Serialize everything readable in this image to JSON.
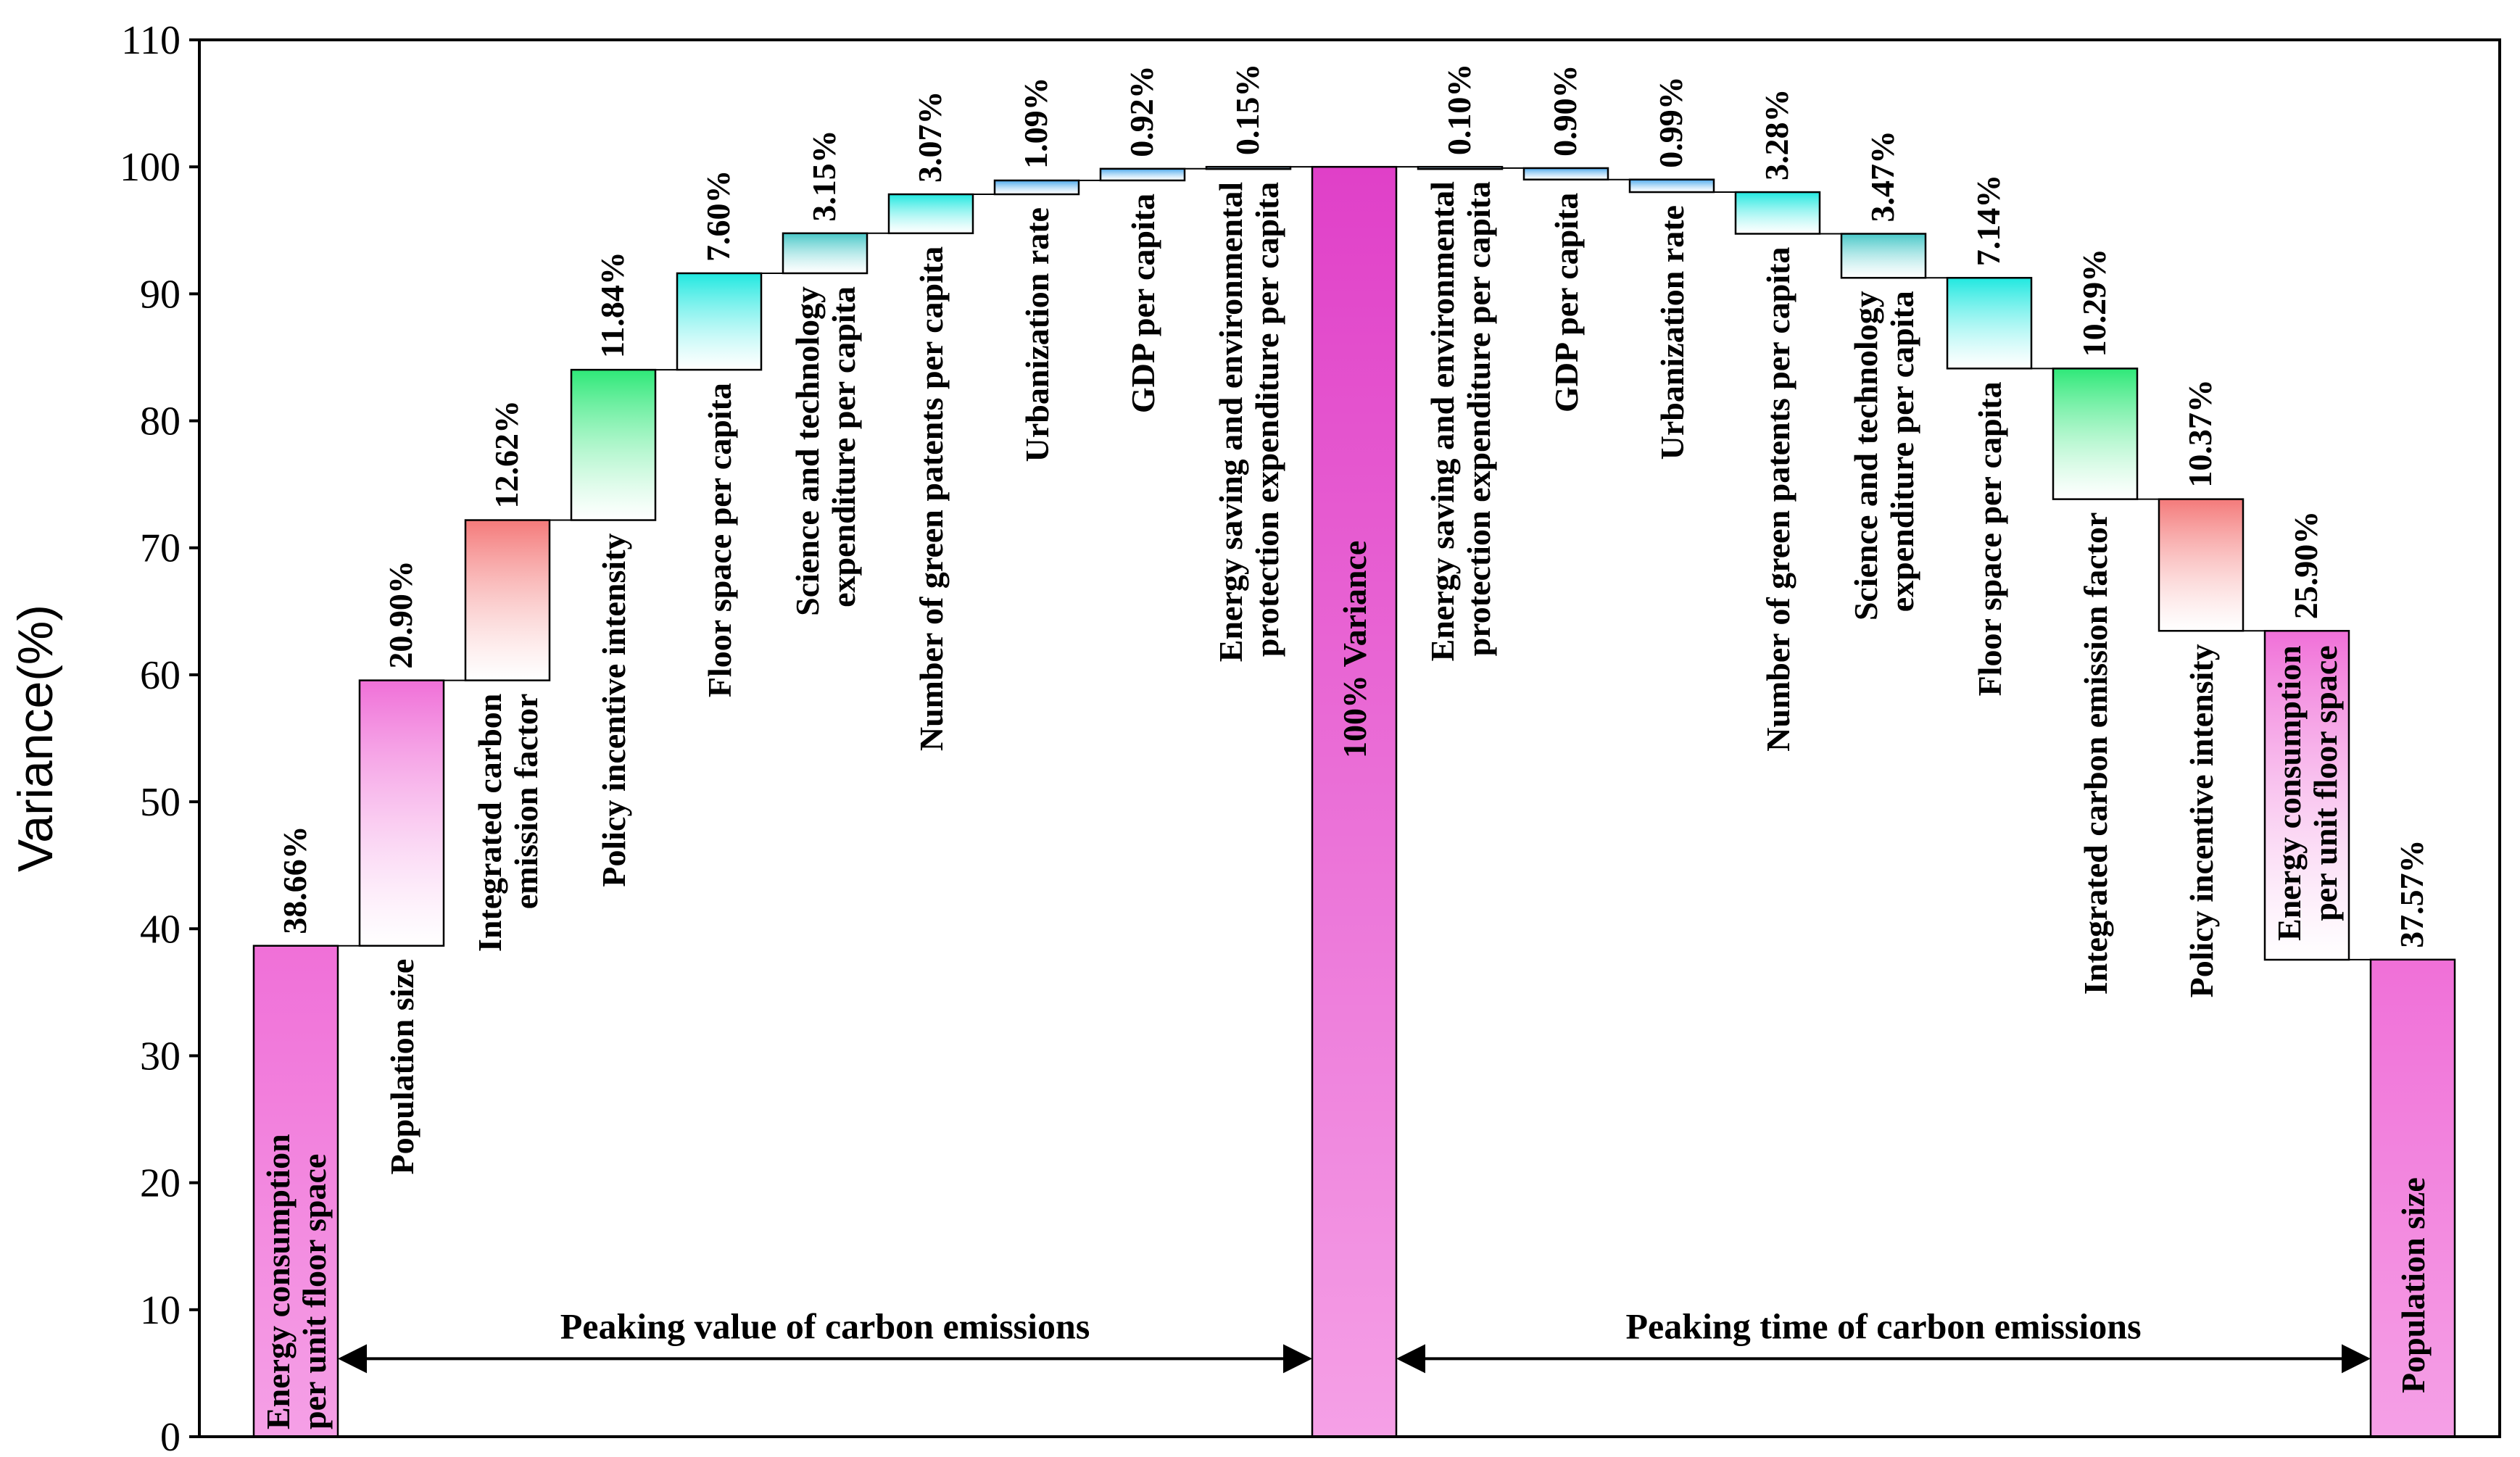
{
  "chart_data": {
    "type": "bar",
    "subtype": "waterfall",
    "ylabel": "Variance(%)",
    "xlabel": "",
    "ylim": [
      0,
      110
    ],
    "yticks": [
      0,
      10,
      20,
      30,
      40,
      50,
      60,
      70,
      80,
      90,
      100,
      110
    ],
    "grid": false,
    "legend": "none",
    "colors": {
      "pink": "#f070d8",
      "magenta": "#e040c8",
      "red": "#f47a7a",
      "green": "#2ee878",
      "cyan": "#20e8e0",
      "teal": "#48c8c8",
      "blue": "#4aa8ec",
      "axis": "#000000"
    },
    "bars": [
      {
        "label": "Energy consumption per unit floor space",
        "label_lines": [
          "Energy consumption",
          "per unit floor space"
        ],
        "value": 38.66,
        "value_label": "38.66%",
        "base": 0,
        "color": "pink",
        "label_pos": "inside"
      },
      {
        "label": "Population size",
        "label_lines": [
          "Population size"
        ],
        "value": 20.9,
        "value_label": "20.90%",
        "base": 38.66,
        "color": "pink",
        "label_pos": "below"
      },
      {
        "label": "Integrated carbon emission factor",
        "label_lines": [
          "Integrated carbon",
          "emission factor"
        ],
        "value": 12.62,
        "value_label": "12.62%",
        "base": 59.56,
        "color": "red",
        "label_pos": "below"
      },
      {
        "label": "Policy incentive intensity",
        "label_lines": [
          "Policy incentive intensity"
        ],
        "value": 11.84,
        "value_label": "11.84%",
        "base": 72.18,
        "color": "green",
        "label_pos": "below"
      },
      {
        "label": "Floor space per capita",
        "label_lines": [
          "Floor space per capita"
        ],
        "value": 7.6,
        "value_label": "7.60%",
        "base": 84.02,
        "color": "cyan",
        "label_pos": "below"
      },
      {
        "label": "Science and technology expenditure per capita",
        "label_lines": [
          "Science and technology",
          "expenditure per capita"
        ],
        "value": 3.15,
        "value_label": "3.15%",
        "base": 91.62,
        "color": "teal",
        "label_pos": "below"
      },
      {
        "label": "Number of green patents per capita",
        "label_lines": [
          "Number of green patents per capita"
        ],
        "value": 3.07,
        "value_label": "3.07%",
        "base": 94.77,
        "color": "cyan",
        "label_pos": "below"
      },
      {
        "label": "Urbanization rate",
        "label_lines": [
          "Urbanization rate"
        ],
        "value": 1.09,
        "value_label": "1.09%",
        "base": 97.84,
        "color": "blue",
        "label_pos": "below"
      },
      {
        "label": "GDP per capita",
        "label_lines": [
          "GDP per capita"
        ],
        "value": 0.92,
        "value_label": "0.92%",
        "base": 98.93,
        "color": "blue",
        "label_pos": "below"
      },
      {
        "label": "Energy saving and environmental protection expenditure per capita",
        "label_lines": [
          "Energy saving and environmental",
          "protection expenditure per capita"
        ],
        "value": 0.15,
        "value_label": "0.15%",
        "base": 99.85,
        "color": "blue",
        "label_pos": "below"
      },
      {
        "label": "100% Variance",
        "label_lines": [
          "100% Variance"
        ],
        "value": 100,
        "value_label": "",
        "base": 0,
        "color": "magenta",
        "label_pos": "inside"
      },
      {
        "label": "Energy saving and environmental protection expenditure per capita",
        "label_lines": [
          "Energy saving and environmental",
          "protection expenditure per capita"
        ],
        "value": 0.1,
        "value_label": "0.10%",
        "base": 99.9,
        "color": "blue",
        "label_pos": "below"
      },
      {
        "label": "GDP per capita",
        "label_lines": [
          "GDP per capita"
        ],
        "value": 0.9,
        "value_label": "0.90%",
        "base": 99.0,
        "color": "blue",
        "label_pos": "below"
      },
      {
        "label": "Urbanization rate",
        "label_lines": [
          "Urbanization rate"
        ],
        "value": 0.99,
        "value_label": "0.99%",
        "base": 98.01,
        "color": "blue",
        "label_pos": "below"
      },
      {
        "label": "Number of green patents per capita",
        "label_lines": [
          "Number of green patents per capita"
        ],
        "value": 3.28,
        "value_label": "3.28%",
        "base": 94.73,
        "color": "cyan",
        "label_pos": "below"
      },
      {
        "label": "Science and technology expenditure per capita",
        "label_lines": [
          "Science and technology",
          "expenditure per capita"
        ],
        "value": 3.47,
        "value_label": "3.47%",
        "base": 91.26,
        "color": "teal",
        "label_pos": "below"
      },
      {
        "label": "Floor space per capita",
        "label_lines": [
          "Floor space per capita"
        ],
        "value": 7.14,
        "value_label": "7.14%",
        "base": 84.12,
        "color": "cyan",
        "label_pos": "below"
      },
      {
        "label": "Integrated carbon emission factor",
        "label_lines": [
          "Integrated carbon emission factor"
        ],
        "value": 10.29,
        "value_label": "10.29%",
        "base": 73.83,
        "color": "green",
        "label_pos": "below"
      },
      {
        "label": "Policy incentive intensity",
        "label_lines": [
          "Policy incentive intensity"
        ],
        "value": 10.37,
        "value_label": "10.37%",
        "base": 63.46,
        "color": "red",
        "label_pos": "below"
      },
      {
        "label": "Energy consumption per unit floor space",
        "label_lines": [
          "Energy consumption",
          "per unit floor space"
        ],
        "value": 25.9,
        "value_label": "25.90%",
        "base": 37.56,
        "color": "pink",
        "label_pos": "inside"
      },
      {
        "label": "Population size",
        "label_lines": [
          "Population size"
        ],
        "value": 37.57,
        "value_label": "37.57%",
        "base": 0,
        "color": "pink",
        "label_pos": "inside"
      }
    ],
    "annotations": [
      {
        "text": "Peaking value of carbon emissions",
        "from_bar": 0,
        "to_bar": 10,
        "y": 5
      },
      {
        "text": "Peaking time of carbon emissions",
        "from_bar": 10,
        "to_bar": 20,
        "y": 5
      }
    ]
  }
}
